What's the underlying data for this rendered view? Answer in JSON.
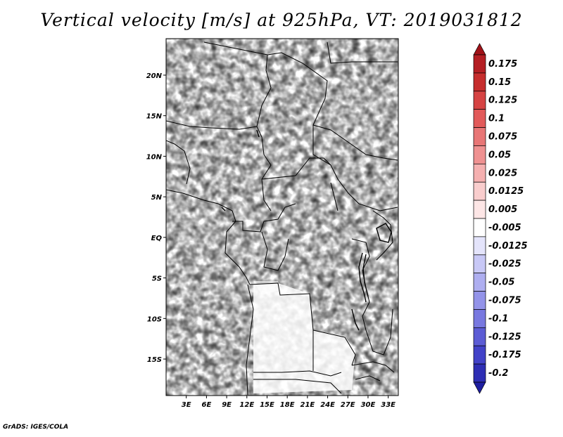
{
  "title": "Vertical velocity [m/s] at 925hPa, VT: 2019031812",
  "credit": "GrADS: IGES/COLA",
  "map": {
    "lon_range": [
      0,
      34.5
    ],
    "lat_range": [
      -19.5,
      24.5
    ],
    "lat_ticks": [
      {
        "value": 20,
        "label": "20N"
      },
      {
        "value": 15,
        "label": "15N"
      },
      {
        "value": 10,
        "label": "10N"
      },
      {
        "value": 5,
        "label": "5N"
      },
      {
        "value": 0,
        "label": "EQ"
      },
      {
        "value": -5,
        "label": "5S"
      },
      {
        "value": -10,
        "label": "10S"
      },
      {
        "value": -15,
        "label": "15S"
      }
    ],
    "lon_ticks": [
      {
        "value": 3,
        "label": "3E"
      },
      {
        "value": 6,
        "label": "6E"
      },
      {
        "value": 9,
        "label": "9E"
      },
      {
        "value": 12,
        "label": "12E"
      },
      {
        "value": 15,
        "label": "15E"
      },
      {
        "value": 18,
        "label": "18E"
      },
      {
        "value": 21,
        "label": "21E"
      },
      {
        "value": 24,
        "label": "24E"
      },
      {
        "value": 27,
        "label": "27E"
      },
      {
        "value": 30,
        "label": "30E"
      },
      {
        "value": 33,
        "label": "33E"
      }
    ]
  },
  "colorbar": {
    "levels": [
      {
        "label": "0.175",
        "color": "#b41e23"
      },
      {
        "label": "0.15",
        "color": "#c62d2d"
      },
      {
        "label": "0.125",
        "color": "#d64343"
      },
      {
        "label": "0.1",
        "color": "#e25a5a"
      },
      {
        "label": "0.075",
        "color": "#e87676"
      },
      {
        "label": "0.05",
        "color": "#ef9191"
      },
      {
        "label": "0.025",
        "color": "#f5b0b0"
      },
      {
        "label": "0.0125",
        "color": "#f9cdcd"
      },
      {
        "label": "0.005",
        "color": "#fde6e6"
      },
      {
        "label": "-0.005",
        "color": "#ffffff"
      },
      {
        "label": "-0.0125",
        "color": "#e4e4fb"
      },
      {
        "label": "-0.025",
        "color": "#c8c8f6"
      },
      {
        "label": "-0.05",
        "color": "#aeaef0"
      },
      {
        "label": "-0.075",
        "color": "#9393e9"
      },
      {
        "label": "-0.1",
        "color": "#7878e0"
      },
      {
        "label": "-0.125",
        "color": "#5c5cd5"
      },
      {
        "label": "-0.175",
        "color": "#4242c8"
      },
      {
        "label": "-0.2",
        "color": "#2e2eb4"
      }
    ],
    "top_color": "#a01218",
    "bottom_color": "#1e1ea0"
  }
}
